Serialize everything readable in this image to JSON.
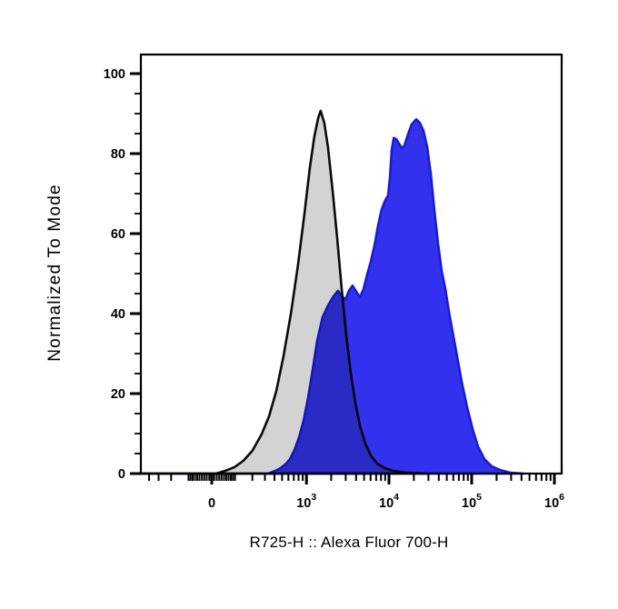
{
  "figure": {
    "background": "#ffffff",
    "x_axis": {
      "label": "R725-H :: Alexa Fluor 700-H",
      "scale": "biexponential",
      "major_ticks": [
        {
          "text": "0",
          "value": 0
        },
        {
          "text": "10^3",
          "value": 1000
        },
        {
          "text": "10^4",
          "value": 10000
        },
        {
          "text": "10^5",
          "value": 100000
        },
        {
          "text": "10^6",
          "value": 1000000
        }
      ]
    },
    "y_axis": {
      "label": "Normalized To Mode",
      "major_ticks": [
        {
          "text": "0",
          "value": 0
        },
        {
          "text": "20",
          "value": 20
        },
        {
          "text": "40",
          "value": 40
        },
        {
          "text": "60",
          "value": 60
        },
        {
          "text": "80",
          "value": 80
        },
        {
          "text": "100",
          "value": 100
        }
      ],
      "minor_tick_step": 5,
      "range": [
        0,
        105
      ]
    }
  },
  "chart_data": {
    "type": "area",
    "title": "",
    "xlabel": "R725-H :: Alexa Fluor 700-H",
    "ylabel": "Normalized To Mode",
    "x_scale": "biexponential (asinh), decades 10^3 to 10^6 with linear region around 0",
    "ylim": [
      0,
      105
    ],
    "legend": "none",
    "series": [
      {
        "name": "gray-filled-histogram",
        "fill": "#d3d3d3",
        "stroke": "#0a0a0a",
        "blend": false,
        "peak": {
          "x": 1490,
          "y": 90.7
        },
        "points": [
          [
            18,
            0
          ],
          [
            56,
            0.7
          ],
          [
            97,
            1.6
          ],
          [
            144,
            3.2
          ],
          [
            200,
            5.7
          ],
          [
            270,
            9.8
          ],
          [
            340,
            14.3
          ],
          [
            423,
            20.7
          ],
          [
            521,
            29.3
          ],
          [
            644,
            40
          ],
          [
            792,
            52.5
          ],
          [
            945,
            65
          ],
          [
            1100,
            76.4
          ],
          [
            1250,
            84.3
          ],
          [
            1390,
            88.9
          ],
          [
            1490,
            90.7
          ],
          [
            1650,
            87.7
          ],
          [
            1830,
            81.6
          ],
          [
            2080,
            70.7
          ],
          [
            2360,
            58.9
          ],
          [
            2680,
            46.1
          ],
          [
            3040,
            34.8
          ],
          [
            3450,
            25.2
          ],
          [
            3920,
            17.7
          ],
          [
            4450,
            12
          ],
          [
            5180,
            7.5
          ],
          [
            6030,
            4.5
          ],
          [
            7200,
            2.5
          ],
          [
            8810,
            1.4
          ],
          [
            11100,
            0.7
          ],
          [
            15400,
            0.25
          ],
          [
            29000,
            0
          ]
        ]
      },
      {
        "name": "blue-filled-histogram",
        "fill": "#3232ee",
        "stroke": "#1b1bd6",
        "blend": true,
        "peak": {
          "x": 21400,
          "y": 88.6
        },
        "points": [
          [
            332,
            0
          ],
          [
            413,
            0.7
          ],
          [
            482,
            1.4
          ],
          [
            550,
            2.3
          ],
          [
            626,
            3.6
          ],
          [
            713,
            5.9
          ],
          [
            813,
            9.1
          ],
          [
            926,
            13.4
          ],
          [
            1050,
            19.1
          ],
          [
            1190,
            25.9
          ],
          [
            1350,
            33.2
          ],
          [
            1570,
            39.1
          ],
          [
            1830,
            42
          ],
          [
            2130,
            44.3
          ],
          [
            2420,
            45.7
          ],
          [
            2680,
            44.5
          ],
          [
            2960,
            43.4
          ],
          [
            3280,
            45.7
          ],
          [
            3630,
            47
          ],
          [
            4020,
            45.5
          ],
          [
            4450,
            44.1
          ],
          [
            4930,
            46.1
          ],
          [
            5450,
            49.8
          ],
          [
            6030,
            53
          ],
          [
            6680,
            57
          ],
          [
            7390,
            62
          ],
          [
            8180,
            66.1
          ],
          [
            9050,
            68.4
          ],
          [
            9750,
            69.5
          ],
          [
            10300,
            74.1
          ],
          [
            10800,
            80.9
          ],
          [
            11400,
            83.9
          ],
          [
            12300,
            83.6
          ],
          [
            13200,
            82.5
          ],
          [
            14300,
            81.4
          ],
          [
            15400,
            82
          ],
          [
            17000,
            84.8
          ],
          [
            18800,
            87.3
          ],
          [
            21400,
            88.6
          ],
          [
            23600,
            87.7
          ],
          [
            26200,
            85.7
          ],
          [
            29000,
            81.6
          ],
          [
            32100,
            74.8
          ],
          [
            35500,
            65.7
          ],
          [
            39200,
            57.5
          ],
          [
            43400,
            50.7
          ],
          [
            48100,
            46.1
          ],
          [
            53200,
            40.5
          ],
          [
            58800,
            35.5
          ],
          [
            66800,
            29.3
          ],
          [
            75700,
            23
          ],
          [
            88100,
            16.6
          ],
          [
            103000,
            11.1
          ],
          [
            119000,
            6.8
          ],
          [
            143000,
            3.6
          ],
          [
            175000,
            1.8
          ],
          [
            219000,
            0.9
          ],
          [
            297000,
            0.2
          ],
          [
            423000,
            0
          ]
        ]
      }
    ]
  }
}
